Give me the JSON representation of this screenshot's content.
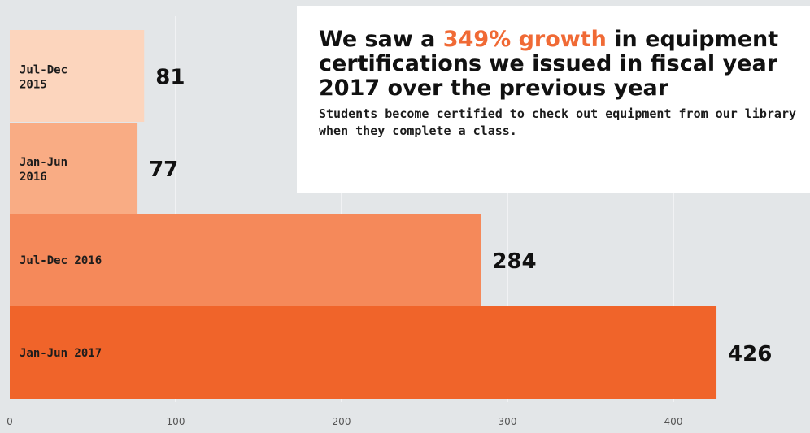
{
  "callout": {
    "headline_before": "We saw a ",
    "headline_highlight": "349% growth",
    "headline_after": " in equipment certifications we issued in fiscal year 2017 over the previous year",
    "body": "Students become certified to check out equipment from our library when they complete a class.",
    "highlight_color": "#f06a35"
  },
  "chart_data": {
    "type": "bar",
    "orientation": "horizontal",
    "categories": [
      [
        "Jul-Dec",
        "2015"
      ],
      [
        "Jan-Jun",
        "2016"
      ],
      [
        "Jul-Dec 2016"
      ],
      [
        "Jan-Jun 2017"
      ]
    ],
    "values": [
      81,
      77,
      284,
      426
    ],
    "value_labels": [
      "81",
      "77",
      "284",
      "426"
    ],
    "colors": [
      "#fcd5bd",
      "#f9ac84",
      "#f5895a",
      "#f0642a"
    ],
    "x_ticks": [
      0,
      100,
      200,
      300,
      400
    ],
    "x_tick_labels": [
      "0",
      "100",
      "200",
      "300",
      "400"
    ],
    "xlim": [
      0,
      440
    ],
    "grid": true,
    "title": "",
    "xlabel": "",
    "ylabel": ""
  }
}
